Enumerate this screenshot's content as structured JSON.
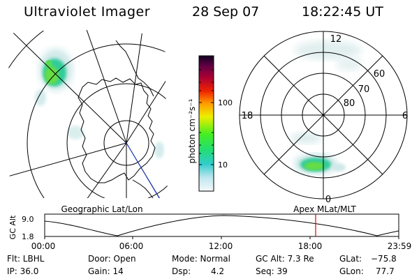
{
  "header": {
    "instrument": "Ultraviolet Imager",
    "date": "28 Sep 07",
    "time": "18:22:45 UT"
  },
  "colorbar": {
    "label": "photon cm⁻²s⁻¹",
    "ticks": [
      "100",
      "10"
    ]
  },
  "polar_plot": {
    "mlt_labels": [
      "12",
      "18",
      "6",
      "0"
    ],
    "mlat_labels": [
      "60",
      "70",
      "80"
    ]
  },
  "timeline": {
    "left_label": "Geographic Lat/Lon",
    "right_label": "Apex MLat/MLT",
    "y_axis_label": "GC Alt",
    "y_ticks": [
      "9.0",
      "1.8"
    ],
    "x_ticks": [
      "00:00",
      "06:00",
      "12:00",
      "18:00",
      "23:59"
    ],
    "current_marker_time": "18:22:45"
  },
  "info": {
    "filter": "Flt: LBHL",
    "ip": "IP: 36.0",
    "door": "Door: Open",
    "gain": "Gain: 14",
    "mode": "Mode: Normal",
    "dsp_label": "Dsp:",
    "dsp_value": "4.2",
    "gc_alt": "GC Alt: 7.3 Re",
    "seq": "Seq: 39",
    "glat_label": "GLat:",
    "glat_value": "−75.8",
    "glon_label": "GLon:",
    "glon_value": "77.7"
  },
  "colors": {
    "marker": "#dd0000",
    "aurora_core": "#66dd44",
    "aurora_mid": "#33cc99",
    "aurora_faint": "#cfe8e8"
  }
}
